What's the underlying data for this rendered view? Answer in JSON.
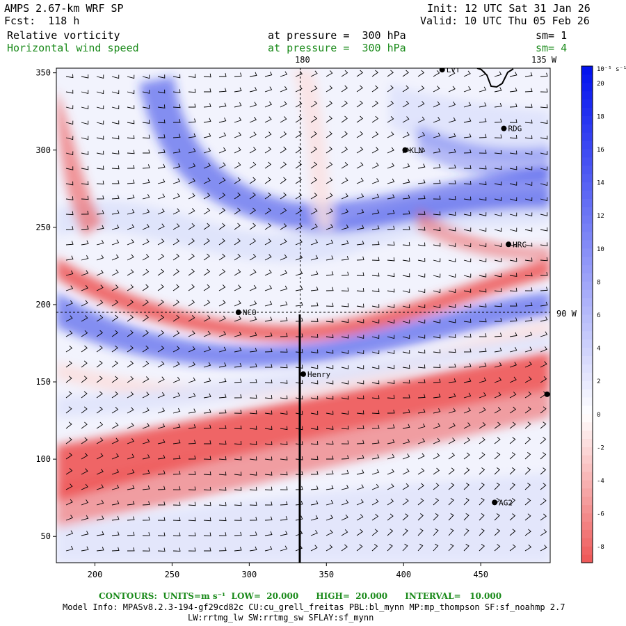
{
  "header": {
    "model_title": "AMPS 2.67-km WRF SP",
    "forecast": "Fcst:  118 h",
    "init": "Init: 12 UTC Sat 31 Jan 26",
    "valid": "Valid: 10 UTC Thu 05 Feb 26",
    "field1": {
      "name": "Relative vorticity",
      "level": "at pressure =  300 hPa",
      "smooth": "sm= 1"
    },
    "field2": {
      "name": "Horizontal wind speed",
      "level": "at pressure =  300 hPa",
      "smooth": "sm= 4"
    }
  },
  "map": {
    "x_ticks": [
      200,
      250,
      300,
      350,
      400,
      450
    ],
    "y_ticks": [
      50,
      100,
      150,
      200,
      250,
      300,
      350
    ],
    "xlim": [
      175,
      495
    ],
    "ylim": [
      33,
      353
    ],
    "meridian_180_label": "180",
    "meridian_135w_label": "135 W",
    "parallel_label": "90 W",
    "meridian_180_x": 333,
    "parallel_y": 195,
    "stations": [
      {
        "name": "LVT",
        "x": 425,
        "y": 352
      },
      {
        "name": "RDG",
        "x": 465,
        "y": 314
      },
      {
        "name": "KLN",
        "x": 401,
        "y": 300
      },
      {
        "name": "HRC",
        "x": 468,
        "y": 239
      },
      {
        "name": "NCO",
        "x": 293,
        "y": 195
      },
      {
        "name": "Henry",
        "x": 335,
        "y": 155
      },
      {
        "name": "",
        "x": 493,
        "y": 142
      },
      {
        "name": "AG2",
        "x": 459,
        "y": 72
      }
    ],
    "colors": {
      "neg_strong": "#ee5555",
      "neg_weak": "#fbe0e0",
      "neutral": "#ffffff",
      "pos_weak": "#dde2fb",
      "pos_strong": "#2a3ae8"
    }
  },
  "colorbar": {
    "units": "10⁻⁵ s⁻¹",
    "ticks": [
      20,
      18,
      16,
      14,
      12,
      10,
      8,
      6,
      4,
      2,
      0,
      -2,
      -4,
      -6,
      -8
    ],
    "range": [
      -9,
      21
    ]
  },
  "footer": {
    "contours": "CONTOURS:  UNITS=m s⁻¹  LOW=  20.000      HIGH=  20.000      INTERVAL=   10.000",
    "model_info": "Model Info: MPASv8.2.3-194-gf29cd82c CU:cu_grell_freitas PBL:bl_mynn MP:mp_thompson SF:sf_noahmp 2.7",
    "model_info2": "LW:rrtmg_lw SW:rrtmg_sw SFLAY:sf_mynn"
  }
}
